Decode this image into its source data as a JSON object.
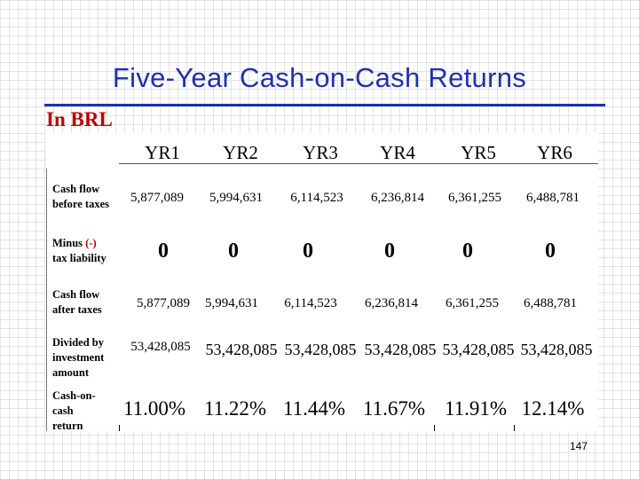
{
  "slide": {
    "title": "Five-Year Cash-on-Cash Returns",
    "currency_note": "In BRL",
    "page_number": "147",
    "title_color": "#1f2fb4",
    "subtitle_color": "#c00000"
  },
  "table": {
    "columns": [
      "YR1",
      "YR2",
      "YR3",
      "YR4",
      "YR5",
      "YR6"
    ],
    "rows": [
      {
        "label_line1": "Cash flow",
        "label_line2": "before taxes",
        "values": [
          "5,877,089",
          "5,994,631",
          "6,114,523",
          "6,236,814",
          "6,361,255",
          "6,488,781"
        ]
      },
      {
        "label_prefix": "Minus ",
        "label_paren": "(-)",
        "label_line2": "tax liability",
        "values": [
          "0",
          "0",
          "0",
          "0",
          "0",
          "0"
        ]
      },
      {
        "label_line1": "Cash flow",
        "label_line2": "after taxes",
        "values": [
          "5,877,089",
          "5,994,631",
          "6,114,523",
          "6,236,814",
          "6,361,255",
          "6,488,781"
        ]
      },
      {
        "label_line1": "Divided by",
        "label_line2": "investment",
        "label_line3": "amount",
        "values": [
          "53,428,085",
          "53,428,085",
          "53,428,085",
          "53,428,085",
          "53,428,085",
          "53,428,085"
        ]
      },
      {
        "label_line1": "Cash-on-",
        "label_line2": "cash",
        "label_line3": "return",
        "values": [
          "11.00%",
          "11.22%",
          "11.44%",
          "11.67%",
          "11.91%",
          "12.14%"
        ]
      }
    ]
  }
}
